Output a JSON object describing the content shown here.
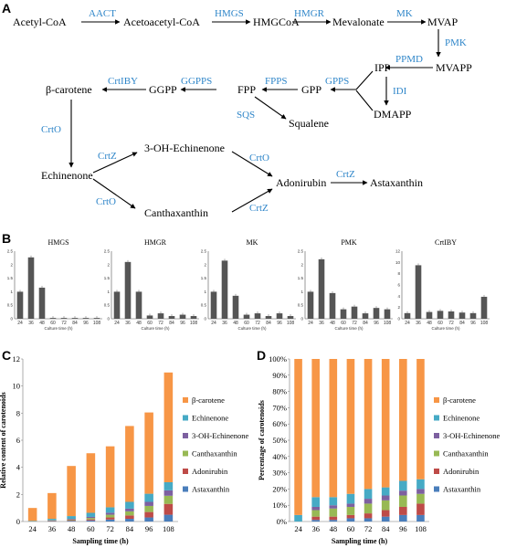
{
  "panel_labels": {
    "a": "A",
    "b": "B",
    "c": "C",
    "d": "D"
  },
  "pathway": {
    "nodes": {
      "acetyl_coa": "Acetyl-CoA",
      "acetoacetyl_coa": "Acetoacetyl-CoA",
      "hmgcoa": "HMGCoA",
      "mevalonate": "Mevalonate",
      "mvap": "MVAP",
      "mvapp": "MVAPP",
      "ipp": "IPP",
      "dmapp": "DMAPP",
      "gpp": "GPP",
      "fpp": "FPP",
      "ggpp": "GGPP",
      "beta_carotene": "β-carotene",
      "squalene": "Squalene",
      "echinenone": "Echinenone",
      "oh_echinenone": "3-OH-Echinenone",
      "canthaxanthin": "Canthaxanthin",
      "adonirubin": "Adonirubin",
      "astaxanthin": "Astaxanthin"
    },
    "enzymes": {
      "aact": "AACT",
      "hmgs": "HMGS",
      "hmgr": "HMGR",
      "mk": "MK",
      "pmk": "PMK",
      "ppmd": "PPMD",
      "idi": "IDI",
      "gpps": "GPPS",
      "fpps": "FPPS",
      "ggpps": "GGPPS",
      "crtiby": "CrtIBY",
      "sqs": "SQS",
      "crto_1": "CrtO",
      "crtz_1": "CrtZ",
      "crto_2": "CrtO",
      "crto_3": "CrtO",
      "crtz_2": "CrtZ",
      "crtz_3": "CrtZ"
    },
    "enzyme_color": "#2f86c9"
  },
  "chart_data": [
    {
      "panel": "B",
      "type": "bar",
      "title": "HMGS",
      "xlabel": "Culture time (h)",
      "categories": [
        "24",
        "36",
        "48",
        "60",
        "72",
        "84",
        "96",
        "108"
      ],
      "values": [
        1.0,
        2.27,
        1.15,
        0.03,
        0.03,
        0.03,
        0.03,
        0.03
      ],
      "ylim": [
        0,
        2.5
      ],
      "yticks": [
        "0",
        "0.5",
        "1",
        "1.5",
        "2",
        "2.5"
      ]
    },
    {
      "panel": "B",
      "type": "bar",
      "title": "HMGR",
      "xlabel": "Culture time (h)",
      "categories": [
        "24",
        "36",
        "48",
        "60",
        "72",
        "84",
        "96",
        "108"
      ],
      "values": [
        1.0,
        2.1,
        1.0,
        0.12,
        0.2,
        0.1,
        0.15,
        0.1
      ],
      "ylim": [
        0,
        2.5
      ],
      "yticks": [
        "0",
        "0.5",
        "1",
        "1.5",
        "2",
        "2.5"
      ]
    },
    {
      "panel": "B",
      "type": "bar",
      "title": "MK",
      "xlabel": "Culture time (h)",
      "categories": [
        "24",
        "36",
        "48",
        "60",
        "72",
        "84",
        "96",
        "108"
      ],
      "values": [
        1.0,
        2.15,
        0.85,
        0.15,
        0.2,
        0.1,
        0.2,
        0.1
      ],
      "ylim": [
        0,
        2.5
      ],
      "yticks": [
        "0",
        "0.5",
        "1",
        "1.5",
        "2",
        "2.5"
      ]
    },
    {
      "panel": "B",
      "type": "bar",
      "title": "PMK",
      "xlabel": "Culture time (h)",
      "categories": [
        "24",
        "36",
        "48",
        "60",
        "72",
        "84",
        "96",
        "108"
      ],
      "values": [
        1.0,
        2.2,
        0.95,
        0.35,
        0.45,
        0.2,
        0.4,
        0.35
      ],
      "ylim": [
        0,
        2.5
      ],
      "yticks": [
        "0",
        "0.5",
        "1",
        "1.5",
        "2",
        "2.5"
      ]
    },
    {
      "panel": "B",
      "type": "bar",
      "title": "CrtIBY",
      "xlabel": "Culture time (h)",
      "categories": [
        "24",
        "36",
        "48",
        "60",
        "72",
        "84",
        "96",
        "108"
      ],
      "values": [
        1.0,
        9.5,
        1.2,
        1.4,
        1.3,
        1.1,
        1.0,
        3.9
      ],
      "ylim": [
        0,
        12
      ],
      "yticks": [
        "0",
        "2",
        "4",
        "6",
        "8",
        "10",
        "12"
      ]
    },
    {
      "panel": "C",
      "type": "bar",
      "stacked": true,
      "xlabel": "Sampling time (h)",
      "ylabel": "Relative content of carotenoids",
      "categories": [
        "24",
        "36",
        "48",
        "60",
        "72",
        "84",
        "96",
        "108"
      ],
      "ylim": [
        0,
        12
      ],
      "yticks": [
        "0",
        "2",
        "4",
        "6",
        "8",
        "10",
        "12"
      ],
      "legend_position": "right",
      "series": [
        {
          "name": "Astaxanthin",
          "color": "#4a7ebb",
          "values": [
            0,
            0.03,
            0.05,
            0.08,
            0.15,
            0.2,
            0.3,
            0.5
          ]
        },
        {
          "name": "Adonirubin",
          "color": "#be4b48",
          "values": [
            0,
            0.03,
            0.05,
            0.08,
            0.15,
            0.25,
            0.4,
            0.8
          ]
        },
        {
          "name": "Canthaxanthin",
          "color": "#98b954",
          "values": [
            0,
            0.03,
            0.05,
            0.1,
            0.2,
            0.3,
            0.45,
            0.6
          ]
        },
        {
          "name": "3-OH-Echinenone",
          "color": "#7d60a0",
          "values": [
            0,
            0.02,
            0.05,
            0.08,
            0.15,
            0.2,
            0.3,
            0.4
          ]
        },
        {
          "name": "Echinenone",
          "color": "#46aac5",
          "values": [
            0.04,
            0.09,
            0.2,
            0.3,
            0.4,
            0.5,
            0.6,
            0.6
          ]
        },
        {
          "name": "β-carotene",
          "color": "#f79646",
          "values": [
            0.96,
            1.9,
            3.7,
            4.4,
            4.5,
            5.6,
            6.0,
            8.1
          ]
        }
      ]
    },
    {
      "panel": "D",
      "type": "bar",
      "stacked": true,
      "percent": true,
      "xlabel": "Sampling time (h)",
      "ylabel": "Percentage of carotenoids",
      "categories": [
        "24",
        "36",
        "48",
        "60",
        "72",
        "84",
        "96",
        "108"
      ],
      "ylim": [
        0,
        100
      ],
      "yticks": [
        "0%",
        "10%",
        "20%",
        "30%",
        "40%",
        "50%",
        "60%",
        "70%",
        "80%",
        "90%",
        "100%"
      ],
      "legend_position": "right",
      "series": [
        {
          "name": "Astaxanthin",
          "color": "#4a7ebb",
          "values": [
            0,
            1,
            1,
            2,
            2,
            3,
            4,
            4
          ]
        },
        {
          "name": "Adonirubin",
          "color": "#be4b48",
          "values": [
            0,
            2,
            2,
            2,
            3,
            4,
            5,
            7
          ]
        },
        {
          "name": "Canthaxanthin",
          "color": "#98b954",
          "values": [
            0,
            4,
            5,
            5,
            6,
            6,
            7,
            6
          ]
        },
        {
          "name": "3-OH-Echinenone",
          "color": "#7d60a0",
          "values": [
            0,
            2,
            2,
            2,
            3,
            3,
            3,
            3
          ]
        },
        {
          "name": "Echinenone",
          "color": "#46aac5",
          "values": [
            4,
            6,
            5,
            6,
            6,
            5,
            6,
            6
          ]
        },
        {
          "name": "β-carotene",
          "color": "#f79646",
          "values": [
            96,
            85,
            85,
            83,
            80,
            79,
            75,
            74
          ]
        }
      ]
    }
  ]
}
